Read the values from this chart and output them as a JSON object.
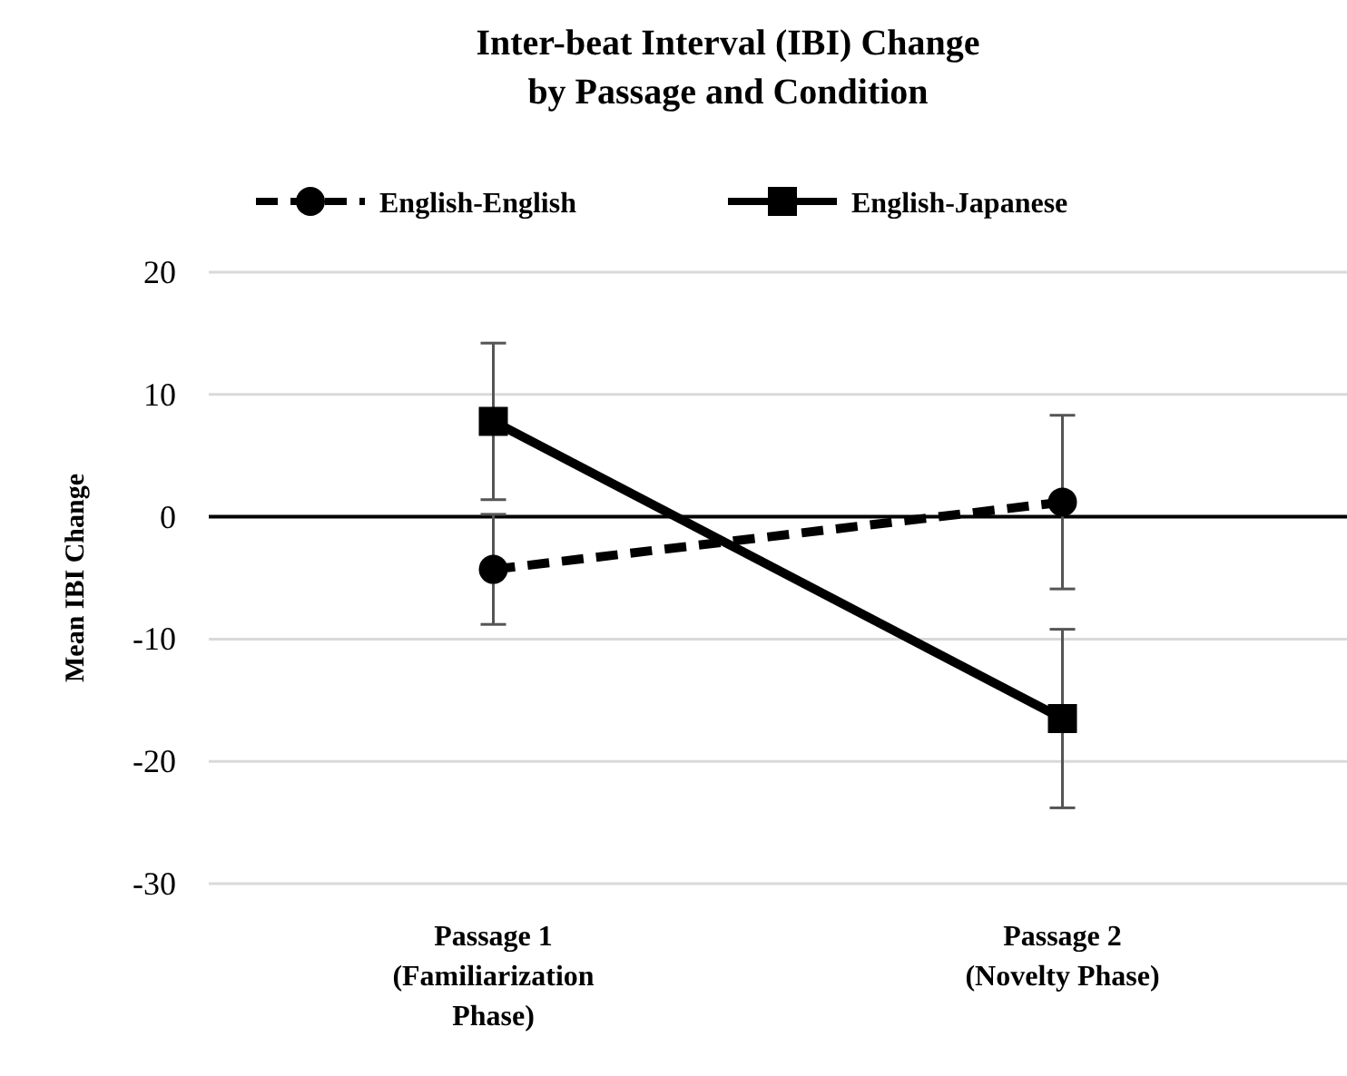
{
  "chart_data": {
    "type": "line",
    "title": "Inter-beat Interval (IBI) Change\nby Passage and Condition",
    "ylabel": "Mean IBI Change",
    "categories": [
      "Passage 1\n(Familiarization\nPhase)",
      "Passage 2\n(Novelty Phase)"
    ],
    "series": [
      {
        "name": "English-English",
        "color": "#000000",
        "values": [
          -4.3,
          1.2
        ],
        "errors": [
          4.5,
          7.1
        ],
        "marker": "circle",
        "line_style": "dashed"
      },
      {
        "name": "English-Japanese",
        "color": "#000000",
        "values": [
          7.8,
          -16.5
        ],
        "errors": [
          6.4,
          7.3
        ],
        "marker": "square",
        "line_style": "solid"
      }
    ],
    "ylim": [
      -30,
      20
    ],
    "yticks": [
      -30,
      -20,
      -10,
      0,
      10,
      20
    ],
    "grid": "y",
    "legend": "top"
  }
}
